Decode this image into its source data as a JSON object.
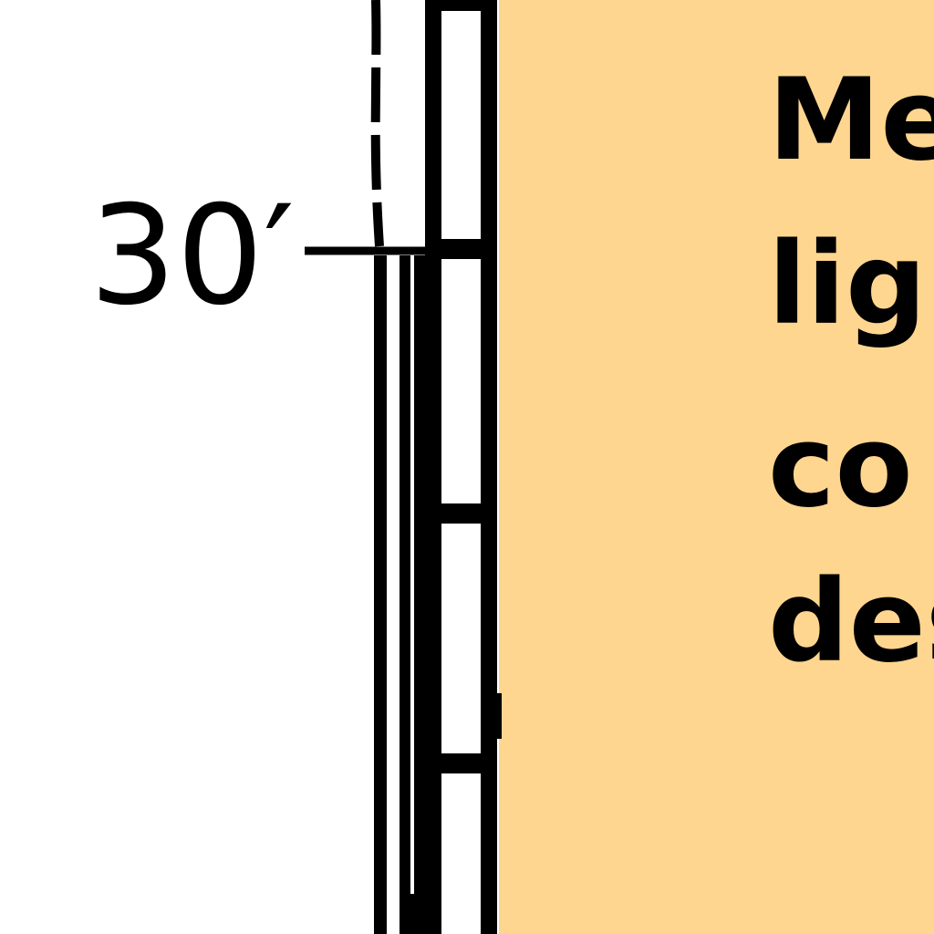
{
  "colors": {
    "panel_background": "#FFD68F",
    "line": "#000000",
    "background": "#FFFFFF"
  },
  "height_marker": {
    "label": "30′"
  },
  "panel": {
    "lines": [
      "Me",
      "lig",
      "co",
      "des"
    ]
  }
}
